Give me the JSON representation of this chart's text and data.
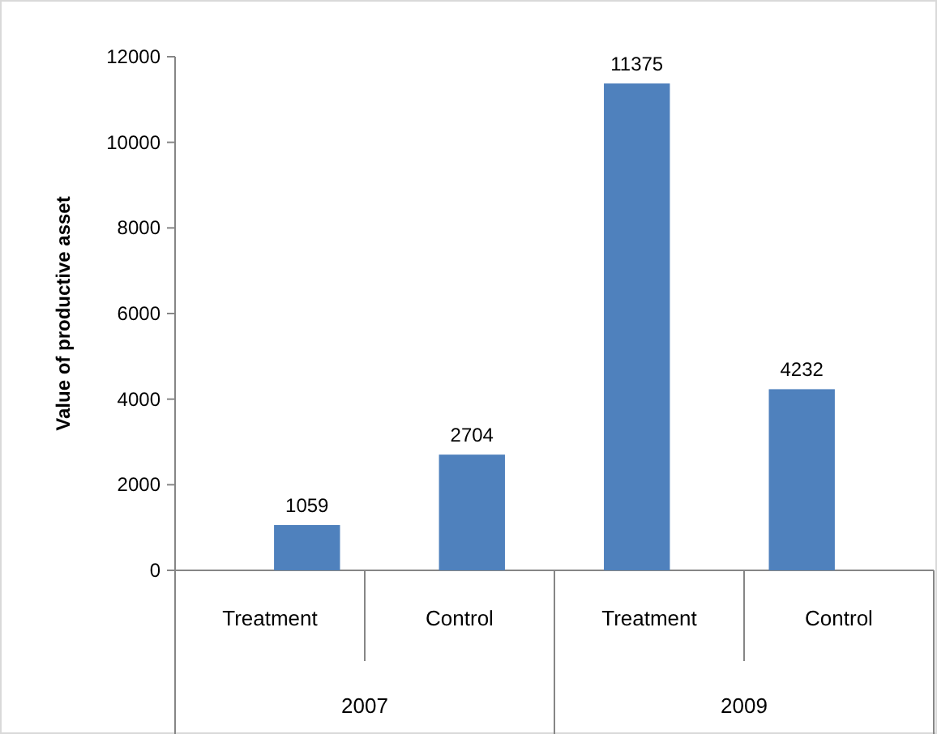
{
  "chart_data": {
    "type": "bar",
    "ylabel": "Value of productive asset",
    "categories": [
      "Treatment",
      "Control",
      "Treatment",
      "Control"
    ],
    "values": [
      1059,
      2704,
      11375,
      4232
    ],
    "color": "#4f81bd",
    "ylim": [
      0,
      12000
    ],
    "yticks": [
      0,
      2000,
      4000,
      6000,
      8000,
      10000,
      12000
    ],
    "data_labels": true,
    "grid": false,
    "annotations": [
      "2007",
      "2009"
    ]
  }
}
